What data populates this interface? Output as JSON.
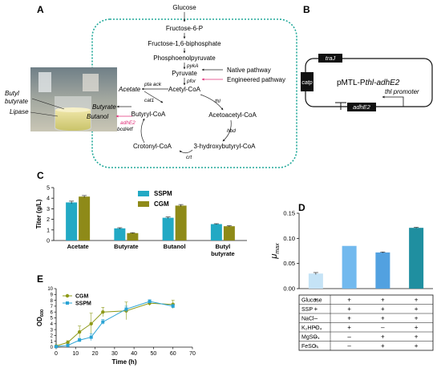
{
  "panels": {
    "A": "A",
    "B": "B",
    "C": "C",
    "D": "D",
    "E": "E"
  },
  "panelA": {
    "metabolites": {
      "glucose": "Glucose",
      "f6p": "Fructose-6-P",
      "f16bp": "Fructose-1,6-biphosphate",
      "pep": "Phosphoenolpyruvate",
      "pyruvate": "Pyruvate",
      "acetylcoa": "Acetyl-CoA",
      "acetate": "Acetate",
      "acetoacetylcoa": "Acetoacetyl-CoA",
      "butyrylcoa": "Butyryl-CoA",
      "butyrate": "Butyrate",
      "butanol": "Butanol",
      "crotonylcoa": "Crotonyl-CoA",
      "hydroxybutyrylcoa": "3-hydroxybutyryl-CoA"
    },
    "enzymes": {
      "pyka": "pykA",
      "pfor": "pfor",
      "pta_ack": "pta ack",
      "cat1": "cat1",
      "thl": "thl",
      "hbd": "hbd",
      "crt": "crt",
      "bcd_etf": "bcd/etf",
      "adhe2": "adhE2"
    },
    "legend": {
      "native": "Native pathway",
      "engineered": "Engineered pathway"
    },
    "photo_labels": {
      "butyl_butyrate": [
        "Butyl",
        "butyrate"
      ],
      "lipase": "Lipase"
    },
    "colors": {
      "border": "#22a99a",
      "engineered": "#e0307a"
    }
  },
  "panelB": {
    "plasmid": "pMTL-Pthl-adhE2",
    "plasmid_prefix": "pMTL-P",
    "plasmid_suffix": "thl-adhE2",
    "traj": "traJ",
    "catp": "catp",
    "adhe2": "adhE2",
    "promoter": "thl promoter"
  },
  "chart_data": [
    {
      "panel": "C",
      "type": "bar",
      "ylabel": "Titer (g/L)",
      "ylim": [
        0,
        5
      ],
      "yticks": [
        0,
        1,
        2,
        3,
        4,
        5
      ],
      "categories": [
        "Acetate",
        "Butyrate",
        "Butanol",
        "Butyl butyrate"
      ],
      "category_lines": [
        [
          "Acetate"
        ],
        [
          "Butyrate"
        ],
        [
          "Butanol"
        ],
        [
          "Butyl",
          "butyrate"
        ]
      ],
      "series": [
        {
          "name": "SSPM",
          "color": "#22a9c4",
          "values": [
            3.6,
            1.15,
            2.15,
            1.55
          ],
          "errors": [
            0.12,
            0.06,
            0.08,
            0.04
          ]
        },
        {
          "name": "CGM",
          "color": "#8e8a18",
          "values": [
            4.15,
            0.7,
            3.3,
            1.35
          ],
          "errors": [
            0.1,
            0.04,
            0.1,
            0.05
          ]
        }
      ]
    },
    {
      "panel": "D",
      "type": "bar",
      "ylabel_main": "μ",
      "ylabel_sub": "max",
      "ylim": [
        0,
        0.15
      ],
      "yticks": [
        0.0,
        0.05,
        0.1,
        0.15
      ],
      "ytick_labels": [
        "0.00",
        "0.05",
        "0.10",
        "0.15"
      ],
      "values": [
        0.03,
        0.085,
        0.072,
        0.121
      ],
      "errors": [
        0.002,
        0,
        0.001,
        0.001
      ],
      "colors": [
        "#c5e3f6",
        "#72b9ee",
        "#52a1e0",
        "#1f8fa0"
      ],
      "condition_rows": [
        {
          "label": "Glucose",
          "cells": [
            "+",
            "+",
            "+",
            "+"
          ]
        },
        {
          "label": "SSP",
          "cells": [
            "+",
            "+",
            "+",
            "+"
          ]
        },
        {
          "label": "NaCl",
          "cells": [
            "–",
            "+",
            "+",
            "+"
          ]
        },
        {
          "label": "K₂HPO₄",
          "cells": [
            "–",
            "+",
            "–",
            "+"
          ]
        },
        {
          "label": "MgSO₄",
          "cells": [
            "–",
            "–",
            "+",
            "+"
          ]
        },
        {
          "label": "FeSO₄",
          "cells": [
            "–",
            "–",
            "+",
            "+"
          ]
        }
      ]
    },
    {
      "panel": "E",
      "type": "line",
      "xlabel": "Time (h)",
      "ylabel_main": "OD",
      "ylabel_sub": "600",
      "xlim": [
        0,
        70
      ],
      "ylim": [
        0,
        10
      ],
      "xticks": [
        0,
        10,
        20,
        30,
        40,
        50,
        60,
        70
      ],
      "yticks": [
        0,
        1,
        2,
        3,
        4,
        5,
        6,
        7,
        8,
        9,
        10
      ],
      "series": [
        {
          "name": "CGM",
          "color": "#8e9a18",
          "marker": "circle",
          "x": [
            0,
            6,
            12,
            18,
            24,
            36,
            48,
            60
          ],
          "y": [
            0.2,
            0.8,
            2.6,
            4.0,
            6.0,
            6.2,
            7.5,
            7.3
          ],
          "errors": [
            0.1,
            0.3,
            1.0,
            1.8,
            0.8,
            1.5,
            0.4,
            0.7
          ]
        },
        {
          "name": "SSPM",
          "color": "#2aa3d4",
          "marker": "square",
          "x": [
            0,
            6,
            12,
            18,
            24,
            36,
            48,
            60
          ],
          "y": [
            0.1,
            0.3,
            1.2,
            1.7,
            4.3,
            6.5,
            7.8,
            7.0
          ],
          "errors": [
            0.05,
            0.1,
            0.3,
            0.6,
            0.4,
            0.5,
            0.3,
            0.3
          ]
        }
      ]
    }
  ]
}
